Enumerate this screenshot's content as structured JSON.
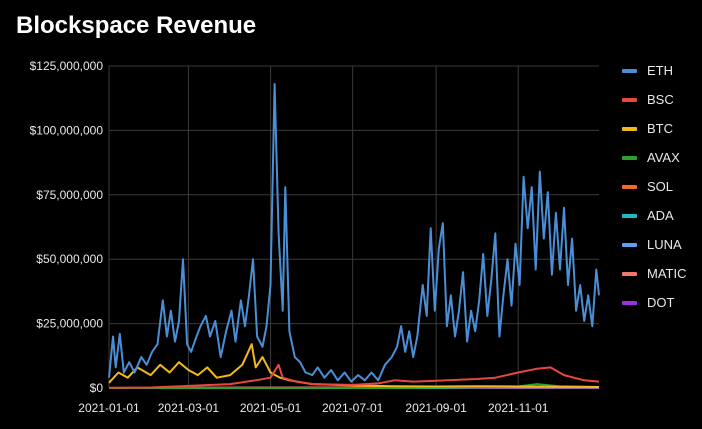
{
  "chart_data": {
    "type": "line",
    "title": "Blockspace Revenue",
    "xlabel": "",
    "ylabel": "",
    "x_tick_labels": [
      "2021-01-01",
      "2021-03-01",
      "2021-05-01",
      "2021-07-01",
      "2021-09-01",
      "2021-11-01"
    ],
    "y_tick_labels": [
      "$0",
      "$25,000,000",
      "$50,000,000",
      "$75,000,000",
      "$100,000,000",
      "$125,000,000"
    ],
    "ylim": [
      0,
      125000000
    ],
    "x_range": [
      "2021-01-01",
      "2021-12-31"
    ],
    "grid": true,
    "legend_position": "right",
    "series": [
      {
        "name": "ETH",
        "color": "#4a8fd6",
        "points": [
          [
            "2021-01-01",
            4000000
          ],
          [
            "2021-01-04",
            20000000
          ],
          [
            "2021-01-06",
            8000000
          ],
          [
            "2021-01-09",
            21000000
          ],
          [
            "2021-01-12",
            6000000
          ],
          [
            "2021-01-16",
            10000000
          ],
          [
            "2021-01-20",
            6000000
          ],
          [
            "2021-01-25",
            12000000
          ],
          [
            "2021-01-29",
            9000000
          ],
          [
            "2021-02-02",
            14000000
          ],
          [
            "2021-02-06",
            17000000
          ],
          [
            "2021-02-10",
            34000000
          ],
          [
            "2021-02-13",
            20000000
          ],
          [
            "2021-02-16",
            30000000
          ],
          [
            "2021-02-19",
            18000000
          ],
          [
            "2021-02-22",
            26000000
          ],
          [
            "2021-02-25",
            50000000
          ],
          [
            "2021-02-28",
            17000000
          ],
          [
            "2021-03-03",
            14000000
          ],
          [
            "2021-03-07",
            20000000
          ],
          [
            "2021-03-10",
            24000000
          ],
          [
            "2021-03-14",
            28000000
          ],
          [
            "2021-03-17",
            20000000
          ],
          [
            "2021-03-21",
            26000000
          ],
          [
            "2021-03-25",
            12000000
          ],
          [
            "2021-03-29",
            22000000
          ],
          [
            "2021-04-02",
            30000000
          ],
          [
            "2021-04-05",
            18000000
          ],
          [
            "2021-04-09",
            34000000
          ],
          [
            "2021-04-12",
            24000000
          ],
          [
            "2021-04-15",
            36000000
          ],
          [
            "2021-04-18",
            50000000
          ],
          [
            "2021-04-21",
            20000000
          ],
          [
            "2021-04-25",
            16000000
          ],
          [
            "2021-04-28",
            24000000
          ],
          [
            "2021-05-01",
            40000000
          ],
          [
            "2021-05-04",
            118000000
          ],
          [
            "2021-05-07",
            60000000
          ],
          [
            "2021-05-10",
            30000000
          ],
          [
            "2021-05-12",
            78000000
          ],
          [
            "2021-05-15",
            22000000
          ],
          [
            "2021-05-19",
            12000000
          ],
          [
            "2021-05-23",
            10000000
          ],
          [
            "2021-05-27",
            6000000
          ],
          [
            "2021-06-01",
            5000000
          ],
          [
            "2021-06-05",
            8000000
          ],
          [
            "2021-06-10",
            4000000
          ],
          [
            "2021-06-15",
            7000000
          ],
          [
            "2021-06-20",
            3000000
          ],
          [
            "2021-06-25",
            6000000
          ],
          [
            "2021-06-30",
            2500000
          ],
          [
            "2021-07-05",
            5000000
          ],
          [
            "2021-07-10",
            3000000
          ],
          [
            "2021-07-15",
            6000000
          ],
          [
            "2021-07-20",
            3000000
          ],
          [
            "2021-07-25",
            9000000
          ],
          [
            "2021-07-30",
            12000000
          ],
          [
            "2021-08-03",
            16000000
          ],
          [
            "2021-08-06",
            24000000
          ],
          [
            "2021-08-09",
            14000000
          ],
          [
            "2021-08-12",
            22000000
          ],
          [
            "2021-08-15",
            12000000
          ],
          [
            "2021-08-18",
            20000000
          ],
          [
            "2021-08-22",
            40000000
          ],
          [
            "2021-08-25",
            28000000
          ],
          [
            "2021-08-28",
            62000000
          ],
          [
            "2021-08-31",
            30000000
          ],
          [
            "2021-09-03",
            54000000
          ],
          [
            "2021-09-06",
            64000000
          ],
          [
            "2021-09-09",
            24000000
          ],
          [
            "2021-09-12",
            36000000
          ],
          [
            "2021-09-15",
            20000000
          ],
          [
            "2021-09-18",
            30000000
          ],
          [
            "2021-09-21",
            45000000
          ],
          [
            "2021-09-24",
            18000000
          ],
          [
            "2021-09-27",
            30000000
          ],
          [
            "2021-09-30",
            22000000
          ],
          [
            "2021-10-03",
            34000000
          ],
          [
            "2021-10-06",
            52000000
          ],
          [
            "2021-10-09",
            28000000
          ],
          [
            "2021-10-12",
            42000000
          ],
          [
            "2021-10-15",
            60000000
          ],
          [
            "2021-10-18",
            20000000
          ],
          [
            "2021-10-21",
            36000000
          ],
          [
            "2021-10-24",
            50000000
          ],
          [
            "2021-10-27",
            32000000
          ],
          [
            "2021-10-30",
            56000000
          ],
          [
            "2021-11-02",
            40000000
          ],
          [
            "2021-11-05",
            82000000
          ],
          [
            "2021-11-08",
            62000000
          ],
          [
            "2021-11-11",
            78000000
          ],
          [
            "2021-11-14",
            46000000
          ],
          [
            "2021-11-17",
            84000000
          ],
          [
            "2021-11-20",
            58000000
          ],
          [
            "2021-11-23",
            76000000
          ],
          [
            "2021-11-26",
            44000000
          ],
          [
            "2021-11-29",
            68000000
          ],
          [
            "2021-12-02",
            46000000
          ],
          [
            "2021-12-05",
            70000000
          ],
          [
            "2021-12-08",
            40000000
          ],
          [
            "2021-12-11",
            58000000
          ],
          [
            "2021-12-14",
            30000000
          ],
          [
            "2021-12-17",
            40000000
          ],
          [
            "2021-12-20",
            26000000
          ],
          [
            "2021-12-23",
            36000000
          ],
          [
            "2021-12-26",
            24000000
          ],
          [
            "2021-12-29",
            46000000
          ],
          [
            "2021-12-31",
            36000000
          ]
        ]
      },
      {
        "name": "BSC",
        "color": "#e8463f",
        "points": [
          [
            "2021-01-01",
            100000
          ],
          [
            "2021-02-01",
            200000
          ],
          [
            "2021-03-01",
            800000
          ],
          [
            "2021-04-01",
            1500000
          ],
          [
            "2021-04-20",
            3000000
          ],
          [
            "2021-05-01",
            4000000
          ],
          [
            "2021-05-07",
            9000000
          ],
          [
            "2021-05-10",
            4000000
          ],
          [
            "2021-05-20",
            2500000
          ],
          [
            "2021-06-01",
            1500000
          ],
          [
            "2021-07-01",
            1200000
          ],
          [
            "2021-07-20",
            1800000
          ],
          [
            "2021-08-01",
            3000000
          ],
          [
            "2021-08-15",
            2500000
          ],
          [
            "2021-09-01",
            2800000
          ],
          [
            "2021-10-01",
            3500000
          ],
          [
            "2021-10-15",
            4000000
          ],
          [
            "2021-11-01",
            6000000
          ],
          [
            "2021-11-15",
            7500000
          ],
          [
            "2021-11-25",
            8000000
          ],
          [
            "2021-12-05",
            5000000
          ],
          [
            "2021-12-20",
            3000000
          ],
          [
            "2021-12-31",
            2500000
          ]
        ]
      },
      {
        "name": "BTC",
        "color": "#f3b81a",
        "points": [
          [
            "2021-01-01",
            2000000
          ],
          [
            "2021-01-08",
            6000000
          ],
          [
            "2021-01-15",
            4000000
          ],
          [
            "2021-01-22",
            8000000
          ],
          [
            "2021-02-01",
            5000000
          ],
          [
            "2021-02-08",
            9000000
          ],
          [
            "2021-02-15",
            6000000
          ],
          [
            "2021-02-22",
            10000000
          ],
          [
            "2021-03-01",
            7000000
          ],
          [
            "2021-03-08",
            5000000
          ],
          [
            "2021-03-15",
            8000000
          ],
          [
            "2021-03-22",
            4000000
          ],
          [
            "2021-04-01",
            5000000
          ],
          [
            "2021-04-10",
            9000000
          ],
          [
            "2021-04-17",
            17000000
          ],
          [
            "2021-04-20",
            8000000
          ],
          [
            "2021-04-25",
            12000000
          ],
          [
            "2021-05-01",
            6000000
          ],
          [
            "2021-05-08",
            4000000
          ],
          [
            "2021-05-15",
            3000000
          ],
          [
            "2021-06-01",
            1500000
          ],
          [
            "2021-07-01",
            1000000
          ],
          [
            "2021-08-01",
            700000
          ],
          [
            "2021-09-01",
            600000
          ],
          [
            "2021-10-01",
            700000
          ],
          [
            "2021-11-01",
            600000
          ],
          [
            "2021-12-01",
            500000
          ],
          [
            "2021-12-31",
            400000
          ]
        ]
      },
      {
        "name": "AVAX",
        "color": "#2ca02c",
        "points": [
          [
            "2021-01-01",
            0
          ],
          [
            "2021-08-01",
            0
          ],
          [
            "2021-09-01",
            200000
          ],
          [
            "2021-10-01",
            300000
          ],
          [
            "2021-11-01",
            600000
          ],
          [
            "2021-11-15",
            1500000
          ],
          [
            "2021-12-01",
            700000
          ],
          [
            "2021-12-31",
            400000
          ]
        ]
      },
      {
        "name": "SOL",
        "color": "#f26b1d",
        "points": [
          [
            "2021-01-01",
            0
          ],
          [
            "2021-06-01",
            100000
          ],
          [
            "2021-09-01",
            300000
          ],
          [
            "2021-12-31",
            300000
          ]
        ]
      },
      {
        "name": "ADA",
        "color": "#1bbcc4",
        "points": [
          [
            "2021-01-01",
            0
          ],
          [
            "2021-09-01",
            0
          ],
          [
            "2021-10-01",
            200000
          ],
          [
            "2021-12-31",
            200000
          ]
        ]
      },
      {
        "name": "LUNA",
        "color": "#5fa2f0",
        "points": [
          [
            "2021-01-01",
            0
          ],
          [
            "2021-06-01",
            100000
          ],
          [
            "2021-10-01",
            200000
          ],
          [
            "2021-12-31",
            200000
          ]
        ]
      },
      {
        "name": "MATIC",
        "color": "#f0776b",
        "points": [
          [
            "2021-01-01",
            0
          ],
          [
            "2021-05-01",
            200000
          ],
          [
            "2021-10-01",
            300000
          ],
          [
            "2021-12-31",
            200000
          ]
        ]
      },
      {
        "name": "DOT",
        "color": "#9b30e0",
        "points": [
          [
            "2021-01-01",
            0
          ],
          [
            "2021-12-31",
            0
          ]
        ]
      }
    ]
  }
}
